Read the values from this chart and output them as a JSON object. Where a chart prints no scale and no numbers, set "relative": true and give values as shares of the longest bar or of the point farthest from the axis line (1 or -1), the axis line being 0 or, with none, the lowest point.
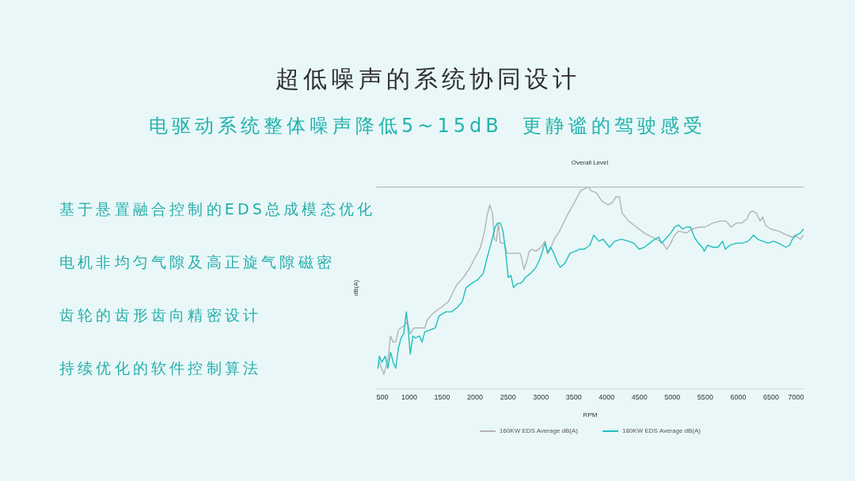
{
  "chart_data": {
    "type": "line",
    "title": "超低噪声的系统协同设计",
    "subtitle": "电驱动系统整体噪声降低5~15dB  更静谧的驾驶感受",
    "annotations": [
      "Overall Level",
      "基于悬置融合控制的EDS总成模态优化",
      "电机非均匀气隙及高正旋气隙磁密",
      "齿轮的齿形齿向精密设计",
      "持续优化的软件控制算法"
    ],
    "xlabel": "RPM",
    "ylabel": "dB(A)",
    "relative": true,
    "xlim": [
      500,
      7000
    ],
    "xticks": [
      500,
      1000,
      1500,
      2000,
      2500,
      3000,
      3500,
      4000,
      4500,
      5000,
      5500,
      6000,
      6500,
      7000
    ],
    "grid": "y",
    "legend": "bottom",
    "series": [
      {
        "name": "160KW EDS Average dB(A)",
        "color": "#b3b3b3",
        "x": [
          540,
          620,
          680,
          720,
          760,
          800,
          840,
          920,
          980,
          1020,
          1080,
          1160,
          1240,
          1280,
          1360,
          1480,
          1600,
          1720,
          1850,
          1930,
          2010,
          2090,
          2150,
          2190,
          2230,
          2270,
          2300,
          2330,
          2360,
          2390,
          2450,
          2490,
          2570,
          2650,
          2690,
          2710,
          2750,
          2790,
          2830,
          2870,
          2930,
          3010,
          3070,
          3110,
          3150,
          3210,
          3290,
          3410,
          3530,
          3610,
          3670,
          3730,
          3770,
          3850,
          3930,
          4030,
          4090,
          4150,
          4200,
          4240,
          4340,
          4460,
          4580,
          4700,
          4820,
          4860,
          4920,
          4980,
          5040,
          5100,
          5220,
          5300,
          5420,
          5500,
          5620,
          5740,
          5820,
          5900,
          5980,
          6060,
          6140,
          6180,
          6220,
          6280,
          6340,
          6380,
          6420,
          6500,
          6620,
          6750,
          6830,
          6870,
          6950,
          7000
        ],
        "values": [
          0.14,
          0.07,
          0.14,
          0.26,
          0.23,
          0.23,
          0.29,
          0.31,
          0.33,
          0.27,
          0.3,
          0.3,
          0.3,
          0.34,
          0.37,
          0.4,
          0.43,
          0.51,
          0.56,
          0.6,
          0.65,
          0.7,
          0.78,
          0.86,
          0.91,
          0.87,
          0.74,
          0.73,
          0.82,
          0.72,
          0.72,
          0.67,
          0.67,
          0.67,
          0.67,
          0.65,
          0.59,
          0.63,
          0.68,
          0.69,
          0.68,
          0.7,
          0.73,
          0.67,
          0.69,
          0.74,
          0.78,
          0.86,
          0.93,
          0.98,
          0.99,
          1,
          0.98,
          0.97,
          0.93,
          0.91,
          0.92,
          0.95,
          0.95,
          0.87,
          0.83,
          0.8,
          0.77,
          0.75,
          0.73,
          0.72,
          0.69,
          0.72,
          0.76,
          0.78,
          0.77,
          0.79,
          0.8,
          0.8,
          0.82,
          0.83,
          0.83,
          0.8,
          0.82,
          0.82,
          0.84,
          0.87,
          0.88,
          0.87,
          0.83,
          0.85,
          0.81,
          0.79,
          0.78,
          0.76,
          0.75,
          0.76,
          0.74,
          0.76
        ]
      },
      {
        "name": "180KW EDS Average dB(A)",
        "color": "#1fbfbc",
        "x": [
          530,
          550,
          590,
          640,
          680,
          720,
          760,
          800,
          840,
          880,
          920,
          960,
          990,
          1020,
          1060,
          1100,
          1160,
          1200,
          1240,
          1320,
          1400,
          1460,
          1560,
          1650,
          1730,
          1810,
          1870,
          1950,
          2050,
          2130,
          2190,
          2250,
          2310,
          2350,
          2390,
          2430,
          2470,
          2510,
          2550,
          2590,
          2650,
          2690,
          2730,
          2770,
          2850,
          2930,
          2990,
          3030,
          3070,
          3110,
          3150,
          3190,
          3250,
          3300,
          3370,
          3450,
          3530,
          3590,
          3670,
          3750,
          3810,
          3890,
          3950,
          4050,
          4130,
          4230,
          4340,
          4420,
          4500,
          4580,
          4660,
          4740,
          4800,
          4840,
          4900,
          4980,
          5040,
          5100,
          5160,
          5220,
          5280,
          5340,
          5400,
          5460,
          5490,
          5540,
          5620,
          5700,
          5770,
          5810,
          5880,
          5980,
          6060,
          6160,
          6240,
          6300,
          6380,
          6460,
          6540,
          6620,
          6730,
          6790,
          6830,
          6890,
          6950,
          7000
        ],
        "values": [
          0.1,
          0.16,
          0.13,
          0.16,
          0.1,
          0.18,
          0.13,
          0.1,
          0.2,
          0.25,
          0.27,
          0.38,
          0.29,
          0.17,
          0.26,
          0.25,
          0.26,
          0.23,
          0.28,
          0.29,
          0.3,
          0.36,
          0.38,
          0.38,
          0.4,
          0.43,
          0.5,
          0.52,
          0.54,
          0.57,
          0.65,
          0.72,
          0.8,
          0.82,
          0.82,
          0.78,
          0.68,
          0.55,
          0.56,
          0.5,
          0.52,
          0.52,
          0.53,
          0.55,
          0.57,
          0.6,
          0.64,
          0.68,
          0.72,
          0.67,
          0.7,
          0.68,
          0.63,
          0.6,
          0.62,
          0.67,
          0.68,
          0.69,
          0.69,
          0.71,
          0.76,
          0.73,
          0.74,
          0.7,
          0.73,
          0.74,
          0.73,
          0.72,
          0.69,
          0.7,
          0.72,
          0.74,
          0.75,
          0.72,
          0.74,
          0.77,
          0.8,
          0.81,
          0.79,
          0.8,
          0.8,
          0.75,
          0.72,
          0.7,
          0.68,
          0.71,
          0.7,
          0.7,
          0.73,
          0.69,
          0.71,
          0.72,
          0.72,
          0.73,
          0.76,
          0.74,
          0.73,
          0.72,
          0.73,
          0.72,
          0.7,
          0.71,
          0.74,
          0.76,
          0.77,
          0.79
        ]
      }
    ]
  }
}
